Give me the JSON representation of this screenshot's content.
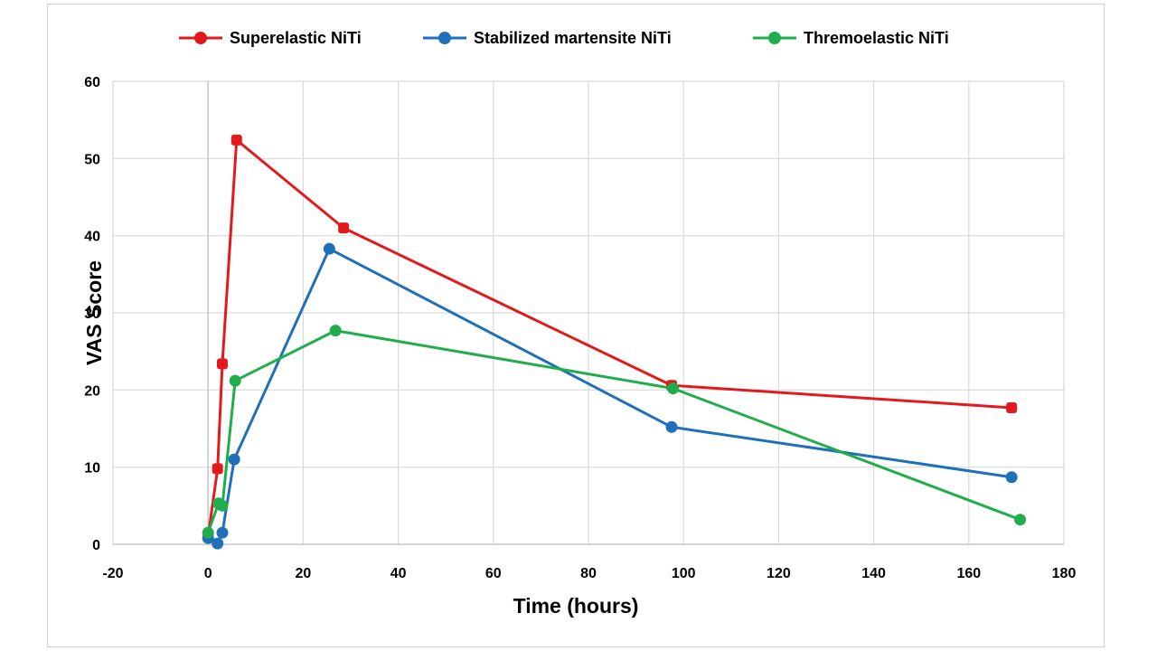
{
  "chart_data": {
    "type": "line",
    "title": "",
    "xlabel": "Time (hours)",
    "ylabel": "VAS Score",
    "xlim": [
      -20,
      180
    ],
    "ylim": [
      0,
      60
    ],
    "xticks": [
      -20,
      0,
      20,
      40,
      60,
      80,
      100,
      120,
      140,
      160,
      180
    ],
    "yticks": [
      0,
      10,
      20,
      30,
      40,
      50,
      60
    ],
    "grid": true,
    "legend_position": "top",
    "series": [
      {
        "name": "Superelastic NiTi",
        "color": "#e31a1c",
        "marker": "square-circle",
        "x": [
          0,
          2,
          3,
          6,
          28.5,
          97.5,
          169
        ],
        "y": [
          1,
          9.8,
          23.4,
          52.4,
          41,
          20.6,
          17.7
        ]
      },
      {
        "name": "Stabilized martensite NiTi",
        "color": "#1f6fb9",
        "marker": "circle",
        "x": [
          0,
          2,
          3,
          5.5,
          25.5,
          97.5,
          169
        ],
        "y": [
          0.8,
          0.1,
          1.5,
          11,
          38.3,
          15.2,
          8.7
        ]
      },
      {
        "name": "Thremoelastic NiTi",
        "color": "#1fae4b",
        "marker": "circle",
        "x": [
          0,
          2.2,
          3,
          5.7,
          26.8,
          97.8,
          170.8
        ],
        "y": [
          1.5,
          5.3,
          5,
          21.2,
          27.7,
          20.2,
          3.2
        ]
      }
    ]
  }
}
